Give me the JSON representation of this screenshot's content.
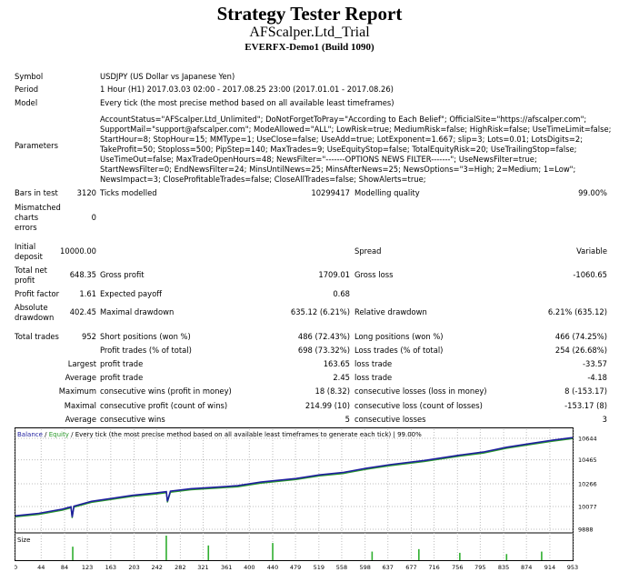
{
  "header": {
    "title": "Strategy Tester Report",
    "subtitle": "AFScalper.Ltd_Trial",
    "server": "EVERFX-Demo1 (Build 1090)"
  },
  "info": {
    "symbol_label": "Symbol",
    "symbol_value": "USDJPY (US Dollar vs Japanese Yen)",
    "period_label": "Period",
    "period_value": "1 Hour (H1) 2017.03.03 02:00 - 2017.08.25 23:00 (2017.01.01 - 2017.08.26)",
    "model_label": "Model",
    "model_value": "Every tick (the most precise method based on all available least timeframes)",
    "parameters_label": "Parameters",
    "parameters_lines": [
      "AccountStatus=\"AFScalper.Ltd_Unlimited\"; DoNotForgetToPray=\"According to Each Belief\"; OfficialSite=\"https://afscalper.com\";",
      "SupportMail=\"support@afscalper.com\"; ModeAllowed=\"ALL\"; LowRisk=true; MediumRisk=false; HighRisk=false; UseTimeLimit=false;",
      "StartHour=8; StopHour=15; MMType=1; UseClose=false; UseAdd=true; LotExponent=1.667; slip=3; Lots=0.01; LotsDigits=2;",
      "TakeProfit=50; Stoploss=500; PipStep=140; MaxTrades=9; UseEquityStop=false; TotalEquityRisk=20; UseTrailingStop=false;",
      "UseTimeOut=false; MaxTradeOpenHours=48; NewsFilter=\"-------OPTIONS NEWS FILTER-------\"; UseNewsFilter=true;",
      "StartNewsFilter=0; EndNewsFilter=24; MinsUntilNews=25; MinsAfterNews=25; NewsOptions=\"3=High; 2=Medium; 1=Low\";",
      "NewsImpact=3; CloseProfitableTrades=false; CloseAllTrades=false; ShowAlerts=true;"
    ]
  },
  "stats": {
    "bars_label": "Bars in test",
    "bars_value": "3120",
    "ticks_label": "Ticks modelled",
    "ticks_value": "10299417",
    "quality_label": "Modelling quality",
    "quality_value": "99.00%",
    "mismatched_label": [
      "Mismatched",
      "charts",
      "errors"
    ],
    "mismatched_value": "0",
    "initial_label": [
      "Initial",
      "deposit"
    ],
    "initial_value": "10000.00",
    "spread_label": "Spread",
    "spread_value": "Variable",
    "netprofit_label": [
      "Total net",
      "profit"
    ],
    "netprofit_value": "648.35",
    "grossprofit_label": "Gross profit",
    "grossprofit_value": "1709.01",
    "grossloss_label": "Gross loss",
    "grossloss_value": "-1060.65",
    "pf_label": "Profit factor",
    "pf_value": "1.61",
    "payoff_label": "Expected payoff",
    "payoff_value": "0.68",
    "absdd_label": [
      "Absolute",
      "drawdown"
    ],
    "absdd_value": "402.45",
    "maxdd_label": "Maximal drawdown",
    "maxdd_value": "635.12 (6.21%)",
    "reldd_label": "Relative drawdown",
    "reldd_value": "6.21% (635.12)",
    "trades_label": "Total trades",
    "trades_value": "952",
    "short_label": "Short positions (won %)",
    "short_value": "486 (72.43%)",
    "long_label": "Long positions (won %)",
    "long_value": "466 (74.25%)",
    "ptrades_label": "Profit trades (% of total)",
    "ptrades_value": "698 (73.32%)",
    "ltrades_label": "Loss trades (% of total)",
    "ltrades_value": "254 (26.68%)",
    "largest_label": "Largest",
    "largest_profit_label": "profit trade",
    "largest_profit_value": "163.65",
    "largest_loss_label": "loss trade",
    "largest_loss_value": "-33.57",
    "average_label": "Average",
    "average_profit_label": "profit trade",
    "average_profit_value": "2.45",
    "average_loss_label": "loss trade",
    "average_loss_value": "-4.18",
    "maximum_label": "Maximum",
    "max_wins_label": "consecutive wins (profit in money)",
    "max_wins_value": "18 (8.32)",
    "max_losses_label": "consecutive losses (loss in money)",
    "max_losses_value": "8 (-153.17)",
    "maximal_label": "Maximal",
    "mx_profit_label": "consecutive profit (count of wins)",
    "mx_profit_value": "214.99 (10)",
    "mx_loss_label": "consecutive loss (count of losses)",
    "mx_loss_value": "-153.17 (8)",
    "avg2_label": "Average",
    "avg_wins_label": "consecutive wins",
    "avg_wins_value": "5",
    "avg_losses_label": "consecutive losses",
    "avg_losses_value": "3"
  },
  "chart_data": {
    "type": "line",
    "legend": [
      "Balance",
      "Equity"
    ],
    "caption": "Every tick (the most precise method based on all available least timeframes to generate each tick) | 99.00%",
    "colors": {
      "balance": "#1f1f9f",
      "equity": "#2a9a2a",
      "grid": "#bcbcbc",
      "text": "#000000",
      "volume": "#2fae2f"
    },
    "y_ticks": [
      "10644",
      "10465",
      "10266",
      "10077",
      "9888"
    ],
    "ylim": [
      9888,
      10644
    ],
    "x_ticks": [
      "0",
      "44",
      "84",
      "123",
      "163",
      "203",
      "242",
      "282",
      "321",
      "361",
      "400",
      "440",
      "479",
      "519",
      "558",
      "598",
      "637",
      "677",
      "716",
      "756",
      "795",
      "835",
      "874",
      "914",
      "953"
    ],
    "volume_label": "Size",
    "x": [
      0,
      40,
      80,
      95,
      97,
      100,
      130,
      200,
      240,
      258,
      260,
      265,
      300,
      350,
      380,
      400,
      420,
      480,
      520,
      560,
      600,
      640,
      700,
      760,
      800,
      840,
      880,
      920,
      953
    ],
    "balance": [
      10000,
      10020,
      10055,
      10075,
      9990,
      10080,
      10120,
      10170,
      10190,
      10200,
      10120,
      10205,
      10225,
      10240,
      10250,
      10265,
      10280,
      10310,
      10340,
      10360,
      10395,
      10425,
      10460,
      10505,
      10530,
      10570,
      10600,
      10630,
      10650
    ],
    "volume_x": [
      98,
      258,
      330,
      440,
      610,
      690,
      760,
      840,
      900
    ],
    "volume_h": [
      0.55,
      1.0,
      0.6,
      0.7,
      0.35,
      0.45,
      0.3,
      0.25,
      0.35
    ]
  }
}
